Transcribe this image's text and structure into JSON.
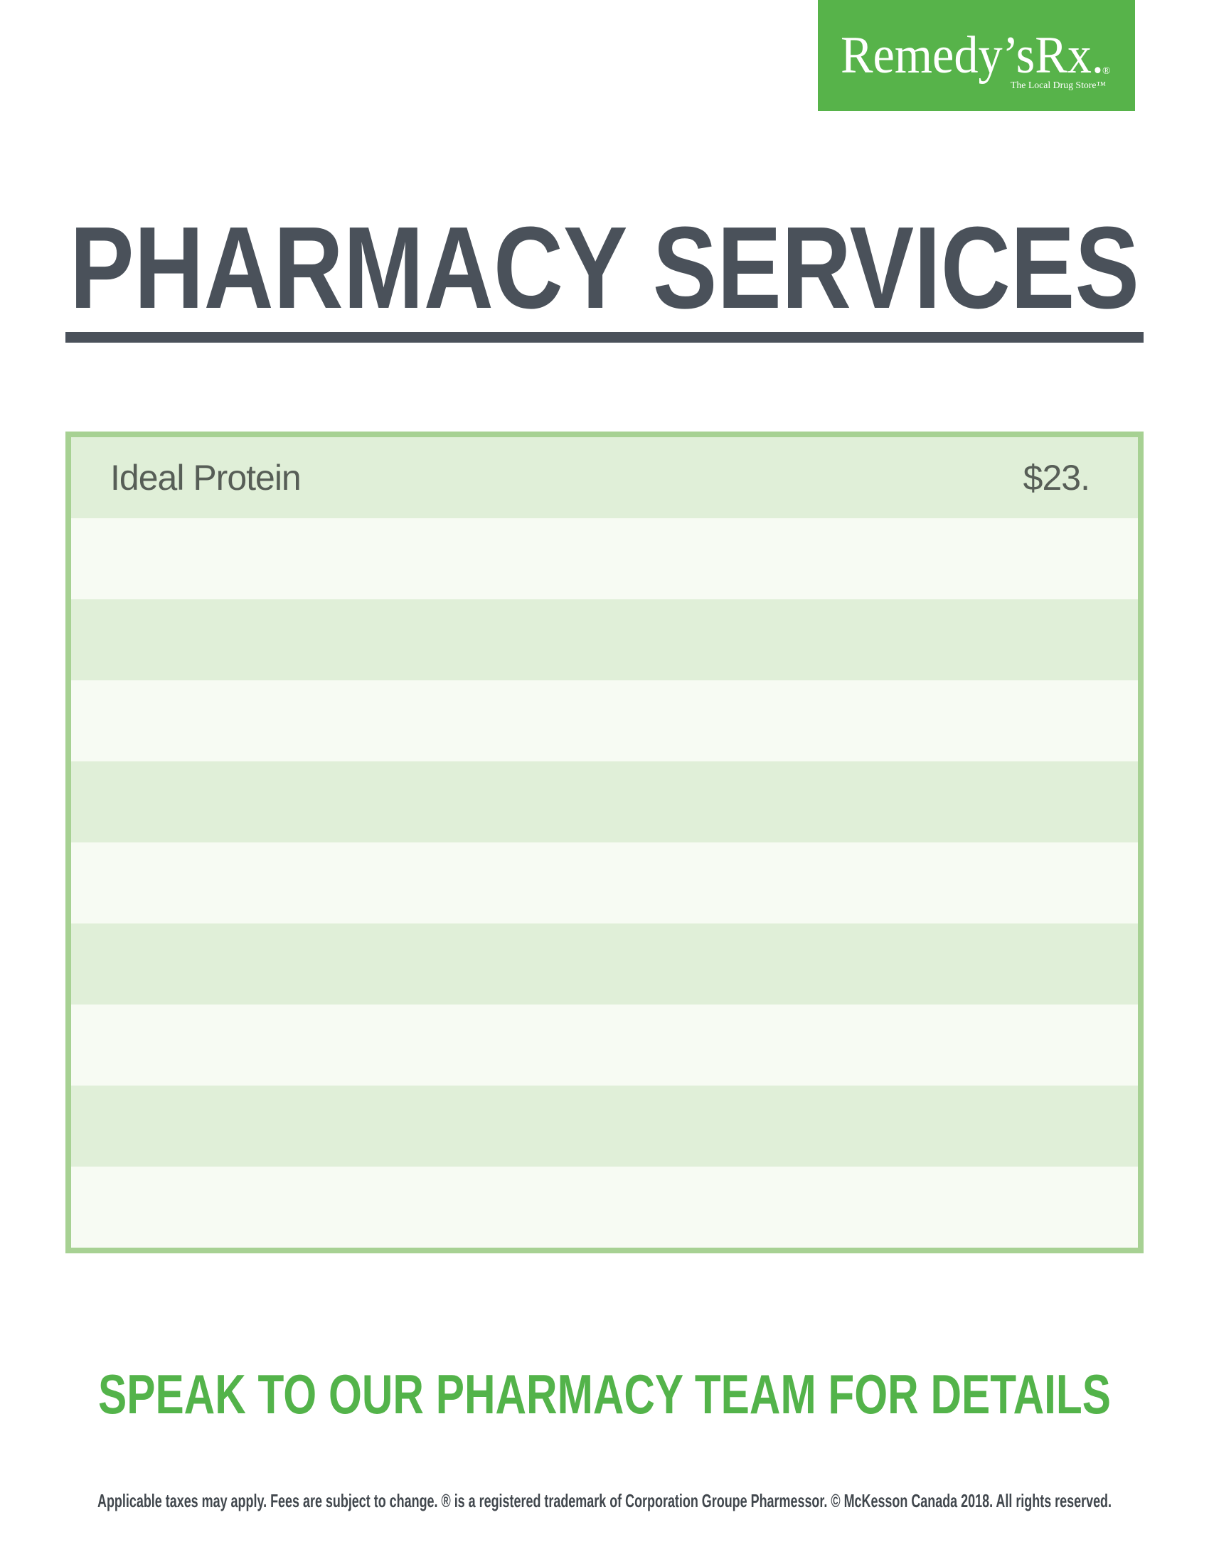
{
  "logo": {
    "wordmark": "Remedy’sRx.",
    "registered_mark": "®",
    "tagline": "The Local Drug Store™"
  },
  "header": {
    "title": "PHARMACY SERVICES"
  },
  "services_table": {
    "rows": [
      {
        "service": "Ideal Protein",
        "price": "$23."
      },
      {
        "service": "",
        "price": ""
      },
      {
        "service": "",
        "price": ""
      },
      {
        "service": "",
        "price": ""
      },
      {
        "service": "",
        "price": ""
      },
      {
        "service": "",
        "price": ""
      },
      {
        "service": "",
        "price": ""
      },
      {
        "service": "",
        "price": ""
      },
      {
        "service": "",
        "price": ""
      },
      {
        "service": "",
        "price": ""
      }
    ]
  },
  "footer": {
    "cta": "SPEAK TO OUR PHARMACY TEAM FOR DETAILS",
    "legal": "Applicable taxes may apply. Fees are subject to change. ® is a registered trademark of Corporation Groupe Pharmessor. © McKesson Canada 2018. All rights reserved."
  },
  "colors": {
    "brand_green": "#57b34a",
    "cta_green": "#53b34a",
    "title_slate": "#4a515a",
    "table_border_green": "#a7d193",
    "row_stripe_green": "#e0efd8",
    "row_stripe_white": "#f7fbf3",
    "row_text": "#575e57",
    "legal_text": "#41474d"
  }
}
